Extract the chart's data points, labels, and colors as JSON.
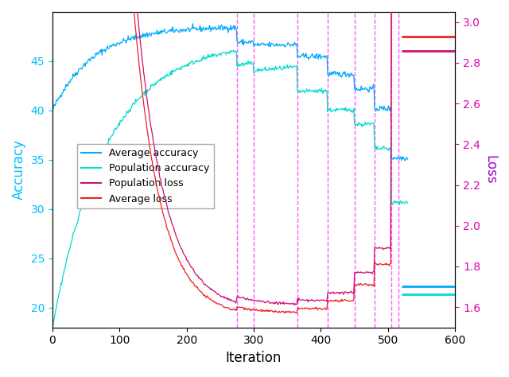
{
  "xlim": [
    0,
    600
  ],
  "ylim_left": [
    18,
    50
  ],
  "ylim_right": [
    1.5,
    3.05
  ],
  "xlabel": "Iteration",
  "ylabel_left": "Accuracy",
  "ylabel_right": "Loss",
  "ylabel_left_color": "#00bfff",
  "ylabel_right_color": "#aa00cc",
  "right_tick_color": "#dd00aa",
  "left_tick_color": "#00bfff",
  "vlines": [
    275,
    300,
    365,
    410,
    450,
    480,
    505,
    515
  ],
  "vline_color": "#ff44ff",
  "legend_labels": [
    "Average accuracy",
    "Population accuracy",
    "Population loss",
    "Average loss"
  ],
  "avg_acc_color": "#00aaff",
  "pop_acc_color": "#00ddcc",
  "pop_loss_color": "#cc1177",
  "avg_loss_color": "#ee2222",
  "avg_acc_final": 22.2,
  "pop_acc_final": 21.4,
  "avg_loss_final_high": 2.93,
  "avg_loss_final_low": 2.86,
  "hline_x_start": 520,
  "hline_x_end": 600,
  "seed": 42
}
